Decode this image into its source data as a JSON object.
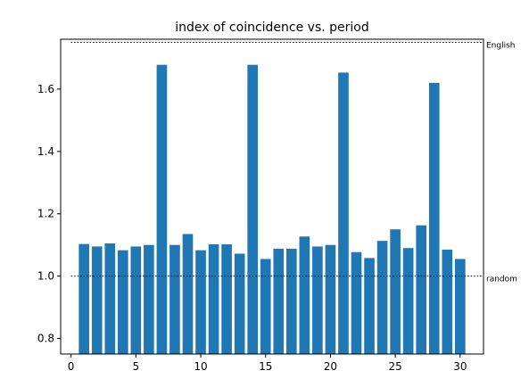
{
  "chart_data": {
    "type": "bar",
    "title": "index of coincidence vs. period",
    "xlabel": "",
    "ylabel": "",
    "x": [
      1,
      2,
      3,
      4,
      5,
      6,
      7,
      8,
      9,
      10,
      11,
      12,
      13,
      14,
      15,
      16,
      17,
      18,
      19,
      20,
      21,
      22,
      23,
      24,
      25,
      26,
      27,
      28,
      29,
      30
    ],
    "values": [
      1.103,
      1.095,
      1.105,
      1.083,
      1.095,
      1.1,
      1.678,
      1.1,
      1.135,
      1.083,
      1.102,
      1.102,
      1.072,
      1.678,
      1.055,
      1.088,
      1.088,
      1.127,
      1.095,
      1.1,
      1.653,
      1.077,
      1.058,
      1.113,
      1.15,
      1.09,
      1.163,
      1.62,
      1.085,
      1.055
    ],
    "xlim": [
      -0.8,
      31.8
    ],
    "ylim": [
      0.75,
      1.76
    ],
    "xticks": [
      0,
      5,
      10,
      15,
      20,
      25,
      30
    ],
    "xtick_labels": [
      "0",
      "5",
      "10",
      "15",
      "20",
      "25",
      "30"
    ],
    "yticks": [
      0.8,
      1.0,
      1.2,
      1.4,
      1.6
    ],
    "ytick_labels": [
      "0.8",
      "1.0",
      "1.2",
      "1.4",
      "1.6"
    ],
    "reference_lines": [
      {
        "label": "English",
        "y": 1.75,
        "style": "dotted"
      },
      {
        "label": "random",
        "y": 1.0,
        "style": "dotted"
      }
    ],
    "bar_color": "#1f77b4",
    "grid": false
  }
}
